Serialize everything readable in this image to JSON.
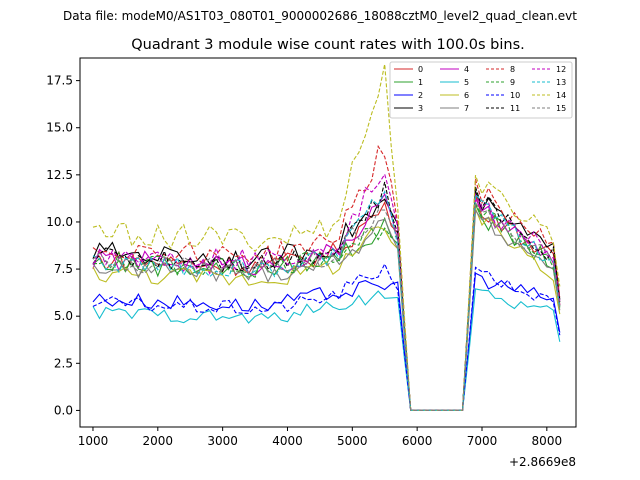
{
  "header": {
    "data_file": "Data file: modeM0/AS1T03_080T01_9000002686_18088cztM0_level2_quad_clean.evt"
  },
  "chart_data": {
    "type": "line",
    "title": "Quadrant 3 module wise count rates with 100.0s bins.",
    "xlabel": "",
    "ylabel": "",
    "x_offset_label": "+2.8669e8",
    "xlim": [
      800,
      8450
    ],
    "ylim": [
      -0.88,
      18.7
    ],
    "xticks": [
      1000,
      2000,
      3000,
      4000,
      5000,
      6000,
      7000,
      8000
    ],
    "xtick_labels": [
      "1000",
      "2000",
      "3000",
      "4000",
      "5000",
      "6000",
      "7000",
      "8000"
    ],
    "yticks": [
      0.0,
      2.5,
      5.0,
      7.5,
      10.0,
      12.5,
      15.0,
      17.5
    ],
    "ytick_labels": [
      "0.0",
      "2.5",
      "5.0",
      "7.5",
      "10.0",
      "12.5",
      "15.0",
      "17.5"
    ],
    "grid": false,
    "legend_position": "top-right",
    "x_start": 1000,
    "x_step": 100,
    "series": [
      {
        "name": "0",
        "color": "#d62728",
        "dash": "solid",
        "profile": {
          "base": 8.0,
          "peak": 10.8,
          "post": 11.0
        }
      },
      {
        "name": "1",
        "color": "#2ca02c",
        "dash": "solid",
        "profile": {
          "base": 7.8,
          "peak": 9.6,
          "post": 10.5
        }
      },
      {
        "name": "2",
        "color": "#0000ff",
        "dash": "solid",
        "profile": {
          "base": 5.9,
          "peak": 6.6,
          "post": 7.0
        }
      },
      {
        "name": "3",
        "color": "#000000",
        "dash": "solid",
        "profile": {
          "base": 8.4,
          "peak": 11.1,
          "post": 11.2
        }
      },
      {
        "name": "4",
        "color": "#c000c0",
        "dash": "solid",
        "profile": {
          "base": 8.0,
          "peak": 11.0,
          "post": 10.8
        }
      },
      {
        "name": "5",
        "color": "#17becf",
        "dash": "solid",
        "profile": {
          "base": 5.2,
          "peak": 6.2,
          "post": 6.2
        }
      },
      {
        "name": "6",
        "color": "#bcbd22",
        "dash": "solid",
        "profile": {
          "base": 7.3,
          "peak": 9.6,
          "post": 10.3
        }
      },
      {
        "name": "7",
        "color": "#7f7f7f",
        "dash": "solid",
        "profile": {
          "base": 7.6,
          "peak": 9.8,
          "post": 10.2
        }
      },
      {
        "name": "8",
        "color": "#d62728",
        "dash": "dashed",
        "profile": {
          "base": 8.6,
          "peak": 14.0,
          "post": 11.8
        }
      },
      {
        "name": "9",
        "color": "#2ca02c",
        "dash": "dashed",
        "profile": {
          "base": 7.9,
          "peak": 9.8,
          "post": 10.6
        }
      },
      {
        "name": "10",
        "color": "#0000ff",
        "dash": "dashed",
        "profile": {
          "base": 5.7,
          "peak": 7.6,
          "post": 7.3
        }
      },
      {
        "name": "11",
        "color": "#000000",
        "dash": "dashed",
        "profile": {
          "base": 8.2,
          "peak": 11.5,
          "post": 11.4
        }
      },
      {
        "name": "12",
        "color": "#c000c0",
        "dash": "dashed",
        "profile": {
          "base": 8.3,
          "peak": 12.8,
          "post": 11.0
        }
      },
      {
        "name": "13",
        "color": "#17becf",
        "dash": "dashed",
        "profile": {
          "base": 7.8,
          "peak": 11.5,
          "post": 11.0
        }
      },
      {
        "name": "14",
        "color": "#bcbd22",
        "dash": "dashed",
        "profile": {
          "base": 9.4,
          "peak": 17.8,
          "post": 12.0
        }
      },
      {
        "name": "15",
        "color": "#7f7f7f",
        "dash": "dashed",
        "profile": {
          "base": 7.9,
          "peak": 11.0,
          "post": 10.6
        }
      }
    ]
  }
}
